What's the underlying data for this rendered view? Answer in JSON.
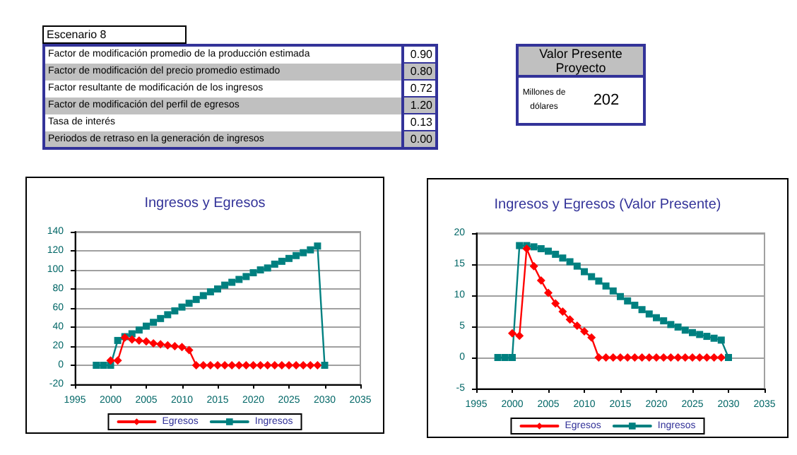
{
  "chart_data": [
    {
      "type": "other",
      "title": "Escenario 8",
      "annotations": [
        "Factor de modificación promedio de la producción estimada",
        "0.90",
        "Factor de modificación del precio promedio estimado",
        "0.80",
        "Factor resultante de modificación de los ingresos",
        "0.72",
        "Factor de modificación del perfil de egresos",
        "1.20",
        "Tasa de interés",
        "0.13",
        "Periodos de retraso en la generación de ingresos",
        "0.00"
      ]
    },
    {
      "type": "other",
      "title": "Valor Presente Proyecto",
      "annotations": [
        "Millones de dólares",
        "202"
      ]
    },
    {
      "type": "line",
      "title": "Ingresos y Egresos",
      "series": [
        {
          "name": "Egresos",
          "color": "#ff0000",
          "marker": "diamond",
          "x": [
            2000,
            2001,
            2002,
            2003,
            2004,
            2005,
            2006,
            2007,
            2008,
            2009,
            2010,
            2011,
            2012,
            2013,
            2014,
            2015,
            2016,
            2017,
            2018,
            2019,
            2020,
            2021,
            2022,
            2023,
            2024,
            2025,
            2026,
            2027,
            2028,
            2029
          ],
          "values": [
            5,
            5,
            29,
            27,
            26,
            25,
            23,
            22,
            21,
            20,
            19,
            16,
            0,
            0,
            0,
            0,
            0,
            0,
            0,
            0,
            0,
            0,
            0,
            0,
            0,
            0,
            0,
            0,
            0,
            0
          ]
        },
        {
          "name": "Ingresos",
          "color": "#008080",
          "marker": "square",
          "x": [
            1998,
            1999,
            2000,
            2001,
            2002,
            2003,
            2004,
            2005,
            2006,
            2007,
            2008,
            2009,
            2010,
            2011,
            2012,
            2013,
            2014,
            2015,
            2016,
            2017,
            2018,
            2019,
            2020,
            2021,
            2022,
            2023,
            2024,
            2025,
            2026,
            2027,
            2028,
            2029,
            2030
          ],
          "values": [
            0,
            0,
            0,
            26,
            30,
            33,
            37,
            41,
            45,
            49,
            53,
            57,
            61,
            65,
            69,
            73,
            77,
            80,
            84,
            87,
            90,
            93,
            97,
            100,
            102,
            106,
            109,
            112,
            115,
            118,
            121,
            125,
            0
          ]
        }
      ],
      "xlim": [
        1995,
        2035
      ],
      "xticks": [
        1995,
        2000,
        2005,
        2010,
        2015,
        2020,
        2025,
        2030,
        2035
      ],
      "ylim": [
        -20,
        140
      ],
      "yticks": [
        -20,
        0,
        20,
        40,
        60,
        80,
        100,
        120,
        140
      ],
      "grid": "y",
      "legend": "bottom"
    },
    {
      "type": "line",
      "title": "Ingresos y Egresos (Valor Presente)",
      "series": [
        {
          "name": "Egresos",
          "color": "#ff0000",
          "marker": "diamond",
          "x": [
            2000,
            2001,
            2002,
            2003,
            2004,
            2005,
            2006,
            2007,
            2008,
            2009,
            2010,
            2011,
            2012,
            2013,
            2014,
            2015,
            2016,
            2017,
            2018,
            2019,
            2020,
            2021,
            2022,
            2023,
            2024,
            2025,
            2026,
            2027,
            2028,
            2029
          ],
          "values": [
            3.9,
            3.5,
            17.5,
            14.7,
            12.4,
            10.4,
            8.7,
            7.4,
            6.1,
            5.1,
            4.2,
            3.2,
            0,
            0,
            0,
            0,
            0,
            0,
            0,
            0,
            0,
            0,
            0,
            0,
            0,
            0,
            0,
            0,
            0,
            0
          ]
        },
        {
          "name": "Ingresos",
          "color": "#008080",
          "marker": "square",
          "x": [
            1998,
            1999,
            2000,
            2001,
            2002,
            2003,
            2004,
            2005,
            2006,
            2007,
            2008,
            2009,
            2010,
            2011,
            2012,
            2013,
            2014,
            2015,
            2016,
            2017,
            2018,
            2019,
            2020,
            2021,
            2022,
            2023,
            2024,
            2025,
            2026,
            2027,
            2028,
            2029,
            2030
          ],
          "values": [
            0,
            0,
            0,
            18,
            18,
            17.8,
            17.5,
            17.1,
            16.6,
            16,
            15.4,
            14.7,
            13.8,
            13,
            12.3,
            11.5,
            10.7,
            9.8,
            9.1,
            8.4,
            7.7,
            7,
            6.4,
            5.9,
            5.3,
            4.9,
            4.4,
            4,
            3.7,
            3.4,
            3.1,
            2.8,
            0
          ]
        }
      ],
      "xlim": [
        1995,
        2035
      ],
      "xticks": [
        1995,
        2000,
        2005,
        2010,
        2015,
        2020,
        2025,
        2030,
        2035
      ],
      "ylim": [
        -5,
        20
      ],
      "yticks": [
        -5,
        0,
        5,
        10,
        15,
        20
      ],
      "grid": "y",
      "legend": "bottom"
    }
  ]
}
